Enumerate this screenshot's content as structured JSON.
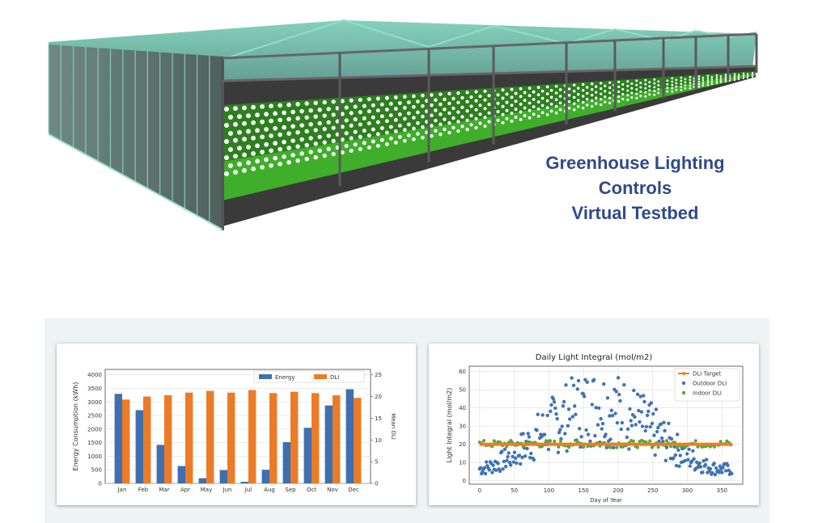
{
  "headline": {
    "line1": "Greenhouse Lighting",
    "line2": "Controls",
    "line3": "Virtual Testbed"
  },
  "colors": {
    "headline": "#2f4a8c",
    "energy": "#3f6fae",
    "dli": "#ec7b27",
    "target": "#ef7d22",
    "outdoor": "#3f73b5",
    "indoor": "#4faa3a"
  },
  "chart_data": [
    {
      "type": "bar",
      "title": "",
      "categories": [
        "Jan",
        "Feb",
        "Mar",
        "Apr",
        "May",
        "Jun",
        "Jul",
        "Aug",
        "Sep",
        "Oct",
        "Nov",
        "Dec"
      ],
      "series": [
        {
          "name": "Energy",
          "axis": "left",
          "values": [
            3300,
            2700,
            1420,
            640,
            190,
            490,
            60,
            500,
            1520,
            2050,
            2870,
            3470
          ]
        },
        {
          "name": "DLI",
          "axis": "right",
          "values": [
            19.3,
            20.0,
            20.3,
            20.9,
            21.3,
            20.9,
            21.5,
            20.8,
            21.1,
            20.8,
            20.3,
            19.7
          ]
        }
      ],
      "xlabel": "",
      "ylabel": "Energy Consumption (kWh)",
      "y2label": "Mean DLI",
      "ylim": [
        0,
        4200
      ],
      "y2lim": [
        0,
        26.25
      ],
      "yticks": [
        0,
        500,
        1000,
        1500,
        2000,
        2500,
        3000,
        3500,
        4000
      ],
      "y2ticks": [
        0,
        5,
        10,
        15,
        20,
        25
      ],
      "grid": true,
      "legend": "top-right"
    },
    {
      "type": "scatter",
      "title": "Daily Light Integral (mol/m2)",
      "xlabel": "Day of Year",
      "ylabel": "Light Integral (mol/m2)",
      "xlim": [
        -15,
        380
      ],
      "ylim": [
        -2,
        63
      ],
      "xticks": [
        0,
        50,
        100,
        150,
        200,
        250,
        300,
        350
      ],
      "yticks": [
        0,
        10,
        20,
        30,
        40,
        50,
        60
      ],
      "series": [
        {
          "name": "DLI Target",
          "style": "line",
          "y": 20
        },
        {
          "name": "Outdoor DLI",
          "style": "points",
          "model": "seasonal",
          "peak": 60,
          "trough": 8,
          "peak_day": 172
        },
        {
          "name": "Indoor DLI",
          "style": "points",
          "model": "near-target",
          "value": 20
        }
      ],
      "grid": true,
      "legend": "top-right"
    }
  ]
}
